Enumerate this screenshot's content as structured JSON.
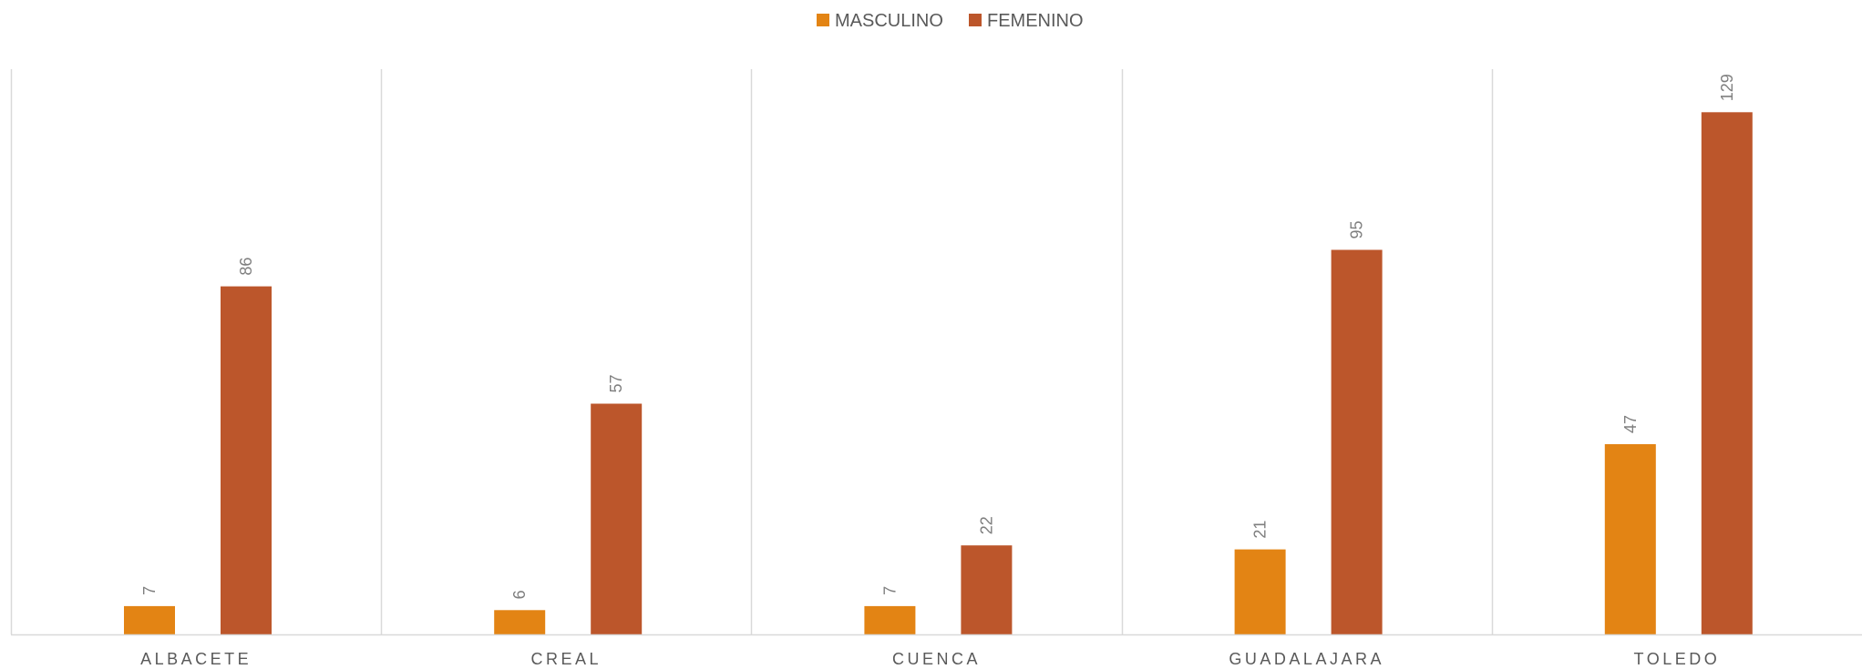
{
  "chart_data": {
    "type": "bar",
    "title": "",
    "xlabel": "",
    "ylabel": "",
    "categories": [
      "ALBACETE",
      "CREAL",
      "CUENCA",
      "GUADALAJARA",
      "TOLEDO"
    ],
    "series": [
      {
        "name": "MASCULINO",
        "color": "#e38414",
        "values": [
          7,
          6,
          7,
          21,
          47
        ]
      },
      {
        "name": "FEMENINO",
        "color": "#bc562b",
        "values": [
          86,
          57,
          22,
          95,
          129
        ]
      }
    ],
    "ylim": [
      0,
      140
    ],
    "grid": "vertical-category-separators",
    "legend_position": "top-center",
    "data_labels": true
  }
}
